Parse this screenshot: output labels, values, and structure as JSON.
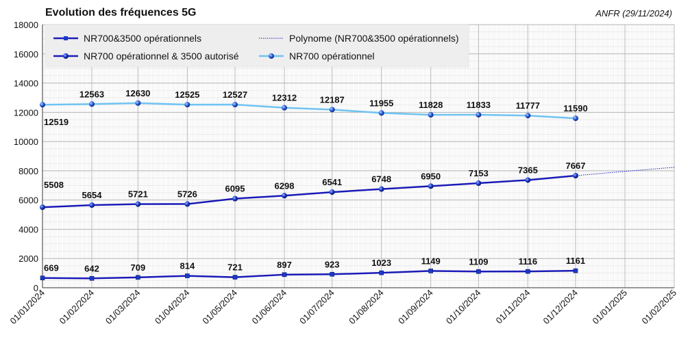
{
  "header": {
    "title": "Evolution des fréquences 5G",
    "source": "ANFR (29/11/2024)"
  },
  "chart_data": {
    "type": "line",
    "title": "Evolution des fréquences 5G",
    "xlabel": "",
    "ylabel": "",
    "ylim": [
      0,
      18000
    ],
    "yticks": [
      0,
      2000,
      4000,
      6000,
      8000,
      10000,
      12000,
      14000,
      16000,
      18000
    ],
    "xticks": [
      "01/01/2024",
      "01/02/2024",
      "01/03/2024",
      "01/04/2024",
      "01/05/2024",
      "01/06/2024",
      "01/07/2024",
      "01/08/2024",
      "01/09/2024",
      "01/10/2024",
      "01/11/2024",
      "01/12/2024",
      "01/01/2025",
      "01/02/2025"
    ],
    "x": [
      "01/01/2024",
      "01/02/2024",
      "01/03/2024",
      "01/04/2024",
      "01/05/2024",
      "01/06/2024",
      "01/07/2024",
      "01/08/2024",
      "01/09/2024",
      "01/10/2024",
      "01/11/2024",
      "01/12/2024"
    ],
    "grid": true,
    "legend_position": "top",
    "series": [
      {
        "name": "NR700&3500 opérationnels",
        "color": "#1a1ab8",
        "marker": "square",
        "values": [
          669,
          642,
          709,
          814,
          721,
          897,
          923,
          1023,
          1149,
          1109,
          1116,
          1161
        ]
      },
      {
        "name": "NR700 opérationnel & 3500 autorisé",
        "color": "#1a1ab8",
        "marker": "sphere",
        "values": [
          5508,
          5654,
          5721,
          5726,
          6095,
          6298,
          6541,
          6748,
          6950,
          7153,
          7365,
          7667
        ]
      },
      {
        "name": "NR700 opérationnel",
        "color": "#6ec3f2",
        "marker": "sphere",
        "values": [
          12519,
          12563,
          12630,
          12525,
          12527,
          12312,
          12187,
          11955,
          11828,
          11833,
          11777,
          11590
        ]
      }
    ],
    "trendline": {
      "name": "Polynome (NR700&3500 opérationnels)",
      "of_series": "NR700 opérationnel & 3500 autorisé",
      "style": "dotted",
      "color": "#1a1ab8",
      "x": [
        "01/11/2024",
        "01/12/2024",
        "01/01/2025",
        "01/02/2025"
      ],
      "values": [
        7365,
        7667,
        7960,
        8240
      ]
    },
    "legend": [
      "NR700&3500 opérationnels",
      "Polynome (NR700&3500 opérationnels)",
      "NR700 opérationnel & 3500 autorisé",
      "NR700 opérationnel"
    ]
  }
}
